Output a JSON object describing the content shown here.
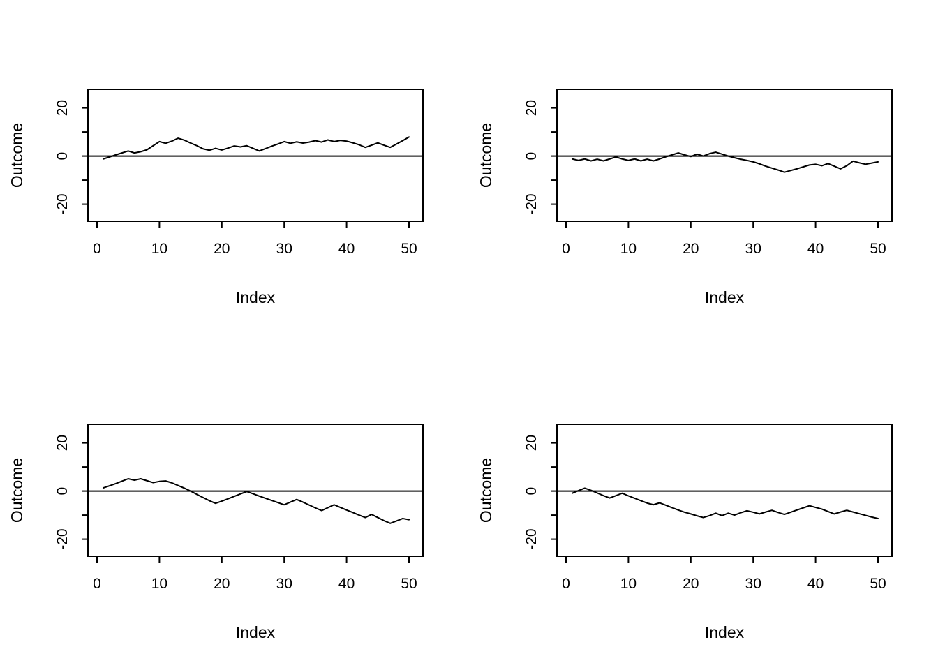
{
  "figure": {
    "background_color": "#ffffff",
    "line_color": "#000000",
    "layout": "2x2 grid of R-style line plots"
  },
  "chart_data": [
    {
      "id": "top-left",
      "type": "line",
      "title": "",
      "xlabel": "Index",
      "ylabel": "Outcome",
      "x_start": 1,
      "x_step": 1,
      "n_points": 50,
      "xlim": [
        0,
        52
      ],
      "ylim": [
        -27,
        27
      ],
      "x_ticks": [
        0,
        10,
        20,
        30,
        40,
        50
      ],
      "y_ticks": [
        -20,
        -10,
        0,
        10,
        20
      ],
      "y_tick_labels_shown": [
        "-20",
        "0",
        "20"
      ],
      "reference_line_y": 0,
      "grid": false,
      "legend": false,
      "values": [
        -1.2,
        -0.4,
        0.5,
        1.3,
        2.1,
        1.3,
        1.8,
        2.6,
        4.3,
        6.0,
        5.3,
        6.2,
        7.4,
        6.6,
        5.4,
        4.3,
        3.0,
        2.4,
        3.2,
        2.5,
        3.3,
        4.2,
        3.8,
        4.3,
        3.2,
        2.1,
        3.1,
        4.1,
        5.0,
        6.0,
        5.3,
        5.9,
        5.4,
        5.8,
        6.4,
        5.8,
        6.7,
        6.0,
        6.5,
        6.2,
        5.5,
        4.7,
        3.6,
        4.5,
        5.5,
        4.5,
        3.6,
        5.0,
        6.4,
        7.9
      ]
    },
    {
      "id": "top-right",
      "type": "line",
      "title": "",
      "xlabel": "Index",
      "ylabel": "Outcome",
      "x_start": 1,
      "x_step": 1,
      "n_points": 50,
      "xlim": [
        0,
        52
      ],
      "ylim": [
        -27,
        27
      ],
      "x_ticks": [
        0,
        10,
        20,
        30,
        40,
        50
      ],
      "y_ticks": [
        -20,
        -10,
        0,
        10,
        20
      ],
      "y_tick_labels_shown": [
        "-20",
        "0",
        "20"
      ],
      "reference_line_y": 0,
      "grid": false,
      "legend": false,
      "values": [
        -1.2,
        -1.8,
        -1.2,
        -2.0,
        -1.3,
        -2.0,
        -1.2,
        -0.4,
        -1.2,
        -1.8,
        -1.2,
        -2.0,
        -1.3,
        -2.0,
        -1.2,
        -0.3,
        0.5,
        1.3,
        0.5,
        -0.2,
        0.8,
        0.0,
        1.0,
        1.6,
        0.8,
        0.0,
        -0.7,
        -1.3,
        -1.8,
        -2.4,
        -3.2,
        -4.2,
        -5.0,
        -5.8,
        -6.7,
        -6.0,
        -5.3,
        -4.5,
        -3.7,
        -3.4,
        -4.0,
        -3.1,
        -4.2,
        -5.3,
        -4.0,
        -2.1,
        -2.8,
        -3.4,
        -2.9,
        -2.4
      ]
    },
    {
      "id": "bottom-left",
      "type": "line",
      "title": "",
      "xlabel": "Index",
      "ylabel": "Outcome",
      "x_start": 1,
      "x_step": 1,
      "n_points": 50,
      "xlim": [
        0,
        52
      ],
      "ylim": [
        -27,
        27
      ],
      "x_ticks": [
        0,
        10,
        20,
        30,
        40,
        50
      ],
      "y_ticks": [
        -20,
        -10,
        0,
        10,
        20
      ],
      "y_tick_labels_shown": [
        "-20",
        "0",
        "20"
      ],
      "reference_line_y": 0,
      "grid": false,
      "legend": false,
      "values": [
        1.3,
        2.2,
        3.1,
        4.1,
        5.1,
        4.5,
        5.1,
        4.3,
        3.5,
        4.0,
        4.2,
        3.4,
        2.3,
        1.2,
        0.0,
        -1.4,
        -2.7,
        -4.0,
        -5.1,
        -4.2,
        -3.2,
        -2.2,
        -1.2,
        -0.2,
        -1.1,
        -2.1,
        -3.0,
        -3.9,
        -4.8,
        -5.7,
        -4.6,
        -3.5,
        -4.6,
        -5.8,
        -7.0,
        -8.1,
        -6.9,
        -5.7,
        -6.8,
        -7.9,
        -8.9,
        -10.0,
        -11.0,
        -9.7,
        -11.0,
        -12.3,
        -13.4,
        -12.4,
        -11.4,
        -11.9
      ]
    },
    {
      "id": "bottom-right",
      "type": "line",
      "title": "",
      "xlabel": "Index",
      "ylabel": "Outcome",
      "x_start": 1,
      "x_step": 1,
      "n_points": 50,
      "xlim": [
        0,
        52
      ],
      "ylim": [
        -27,
        27
      ],
      "x_ticks": [
        0,
        10,
        20,
        30,
        40,
        50
      ],
      "y_ticks": [
        -20,
        -10,
        0,
        10,
        20
      ],
      "y_tick_labels_shown": [
        "-20",
        "0",
        "20"
      ],
      "reference_line_y": 0,
      "grid": false,
      "legend": false,
      "values": [
        -0.9,
        0.2,
        1.2,
        0.3,
        -0.8,
        -1.9,
        -2.9,
        -1.9,
        -0.9,
        -2.0,
        -3.0,
        -4.0,
        -5.0,
        -5.7,
        -4.9,
        -5.9,
        -6.9,
        -7.9,
        -8.8,
        -9.5,
        -10.3,
        -11.0,
        -10.2,
        -9.2,
        -10.2,
        -9.2,
        -10.0,
        -9.0,
        -8.2,
        -8.8,
        -9.5,
        -8.7,
        -8.0,
        -8.9,
        -9.7,
        -8.8,
        -7.9,
        -7.0,
        -6.1,
        -6.8,
        -7.5,
        -8.5,
        -9.5,
        -8.7,
        -8.0,
        -8.7,
        -9.4,
        -10.1,
        -10.8,
        -11.4
      ]
    }
  ]
}
